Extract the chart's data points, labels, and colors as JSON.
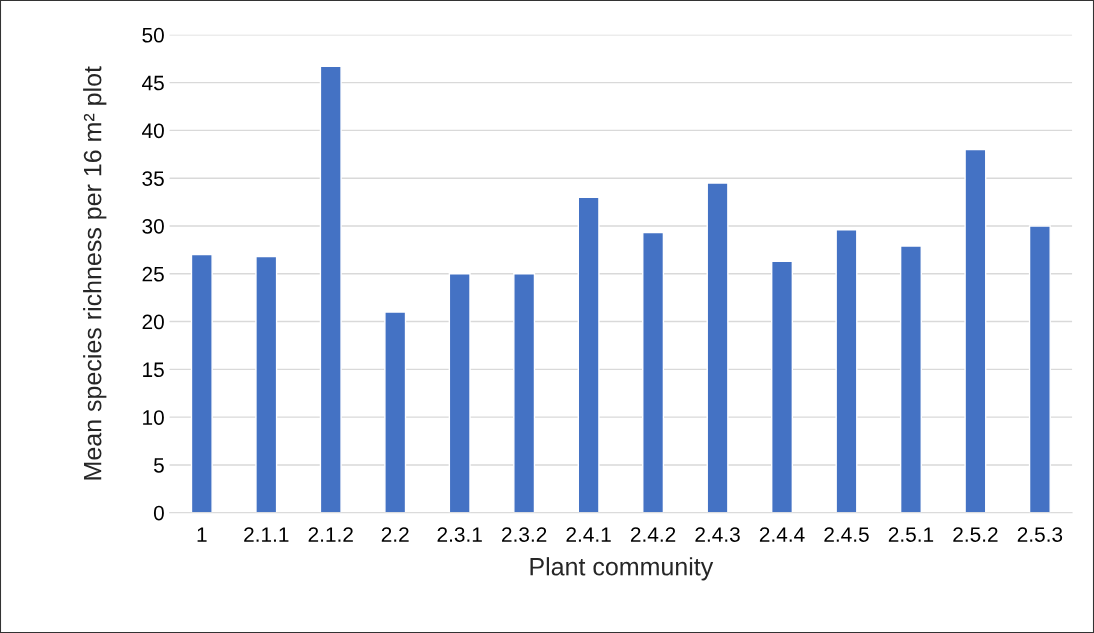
{
  "chart_data": {
    "type": "bar",
    "xlabel": "Plant community",
    "ylabel": "Mean species richness per 16 m² plot",
    "categories": [
      "1",
      "2.1.1",
      "2.1.2",
      "2.2",
      "2.3.1",
      "2.3.2",
      "2.4.1",
      "2.4.2",
      "2.4.3",
      "2.4.4",
      "2.4.5",
      "2.5.1",
      "2.5.2",
      "2.5.3"
    ],
    "values": [
      27,
      26.8,
      46.7,
      21,
      25,
      25,
      33,
      29.3,
      34.5,
      26.3,
      29.6,
      27.9,
      38,
      30
    ],
    "color": "#4472c4",
    "ylim": [
      0,
      50
    ],
    "yticks": [
      0,
      5,
      10,
      15,
      20,
      25,
      30,
      35,
      40,
      45,
      50
    ],
    "grid": "y"
  }
}
